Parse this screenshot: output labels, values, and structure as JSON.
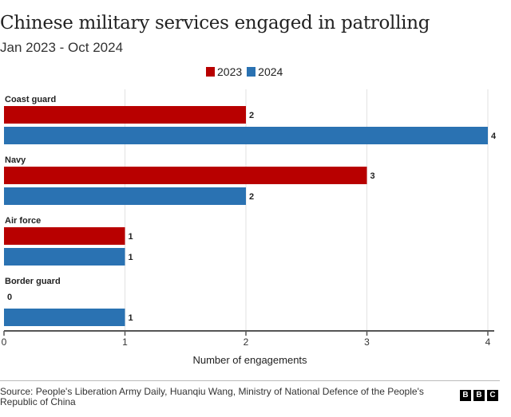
{
  "chart_data": {
    "type": "bar",
    "orientation": "horizontal",
    "title": "Chinese military services engaged in patrolling",
    "subtitle": "Jan 2023 - Oct 2024",
    "categories": [
      "Coast guard",
      "Navy",
      "Air force",
      "Border guard"
    ],
    "series": [
      {
        "name": "2023",
        "color": "#b80000",
        "values": [
          2,
          3,
          1,
          0
        ]
      },
      {
        "name": "2024",
        "color": "#2a72b2",
        "values": [
          4,
          2,
          1,
          1
        ]
      }
    ],
    "xlabel": "Number of engagements",
    "xlim": [
      0,
      4
    ],
    "xticks": [
      "0",
      "1",
      "2",
      "3",
      "4"
    ],
    "grid": true,
    "legend": "top-center"
  },
  "footer": {
    "source": "Source: People's Liberation Army Daily, Huanqiu Wang, Ministry of National Defence of the People's Republic of China",
    "logo": [
      "B",
      "B",
      "C"
    ]
  }
}
